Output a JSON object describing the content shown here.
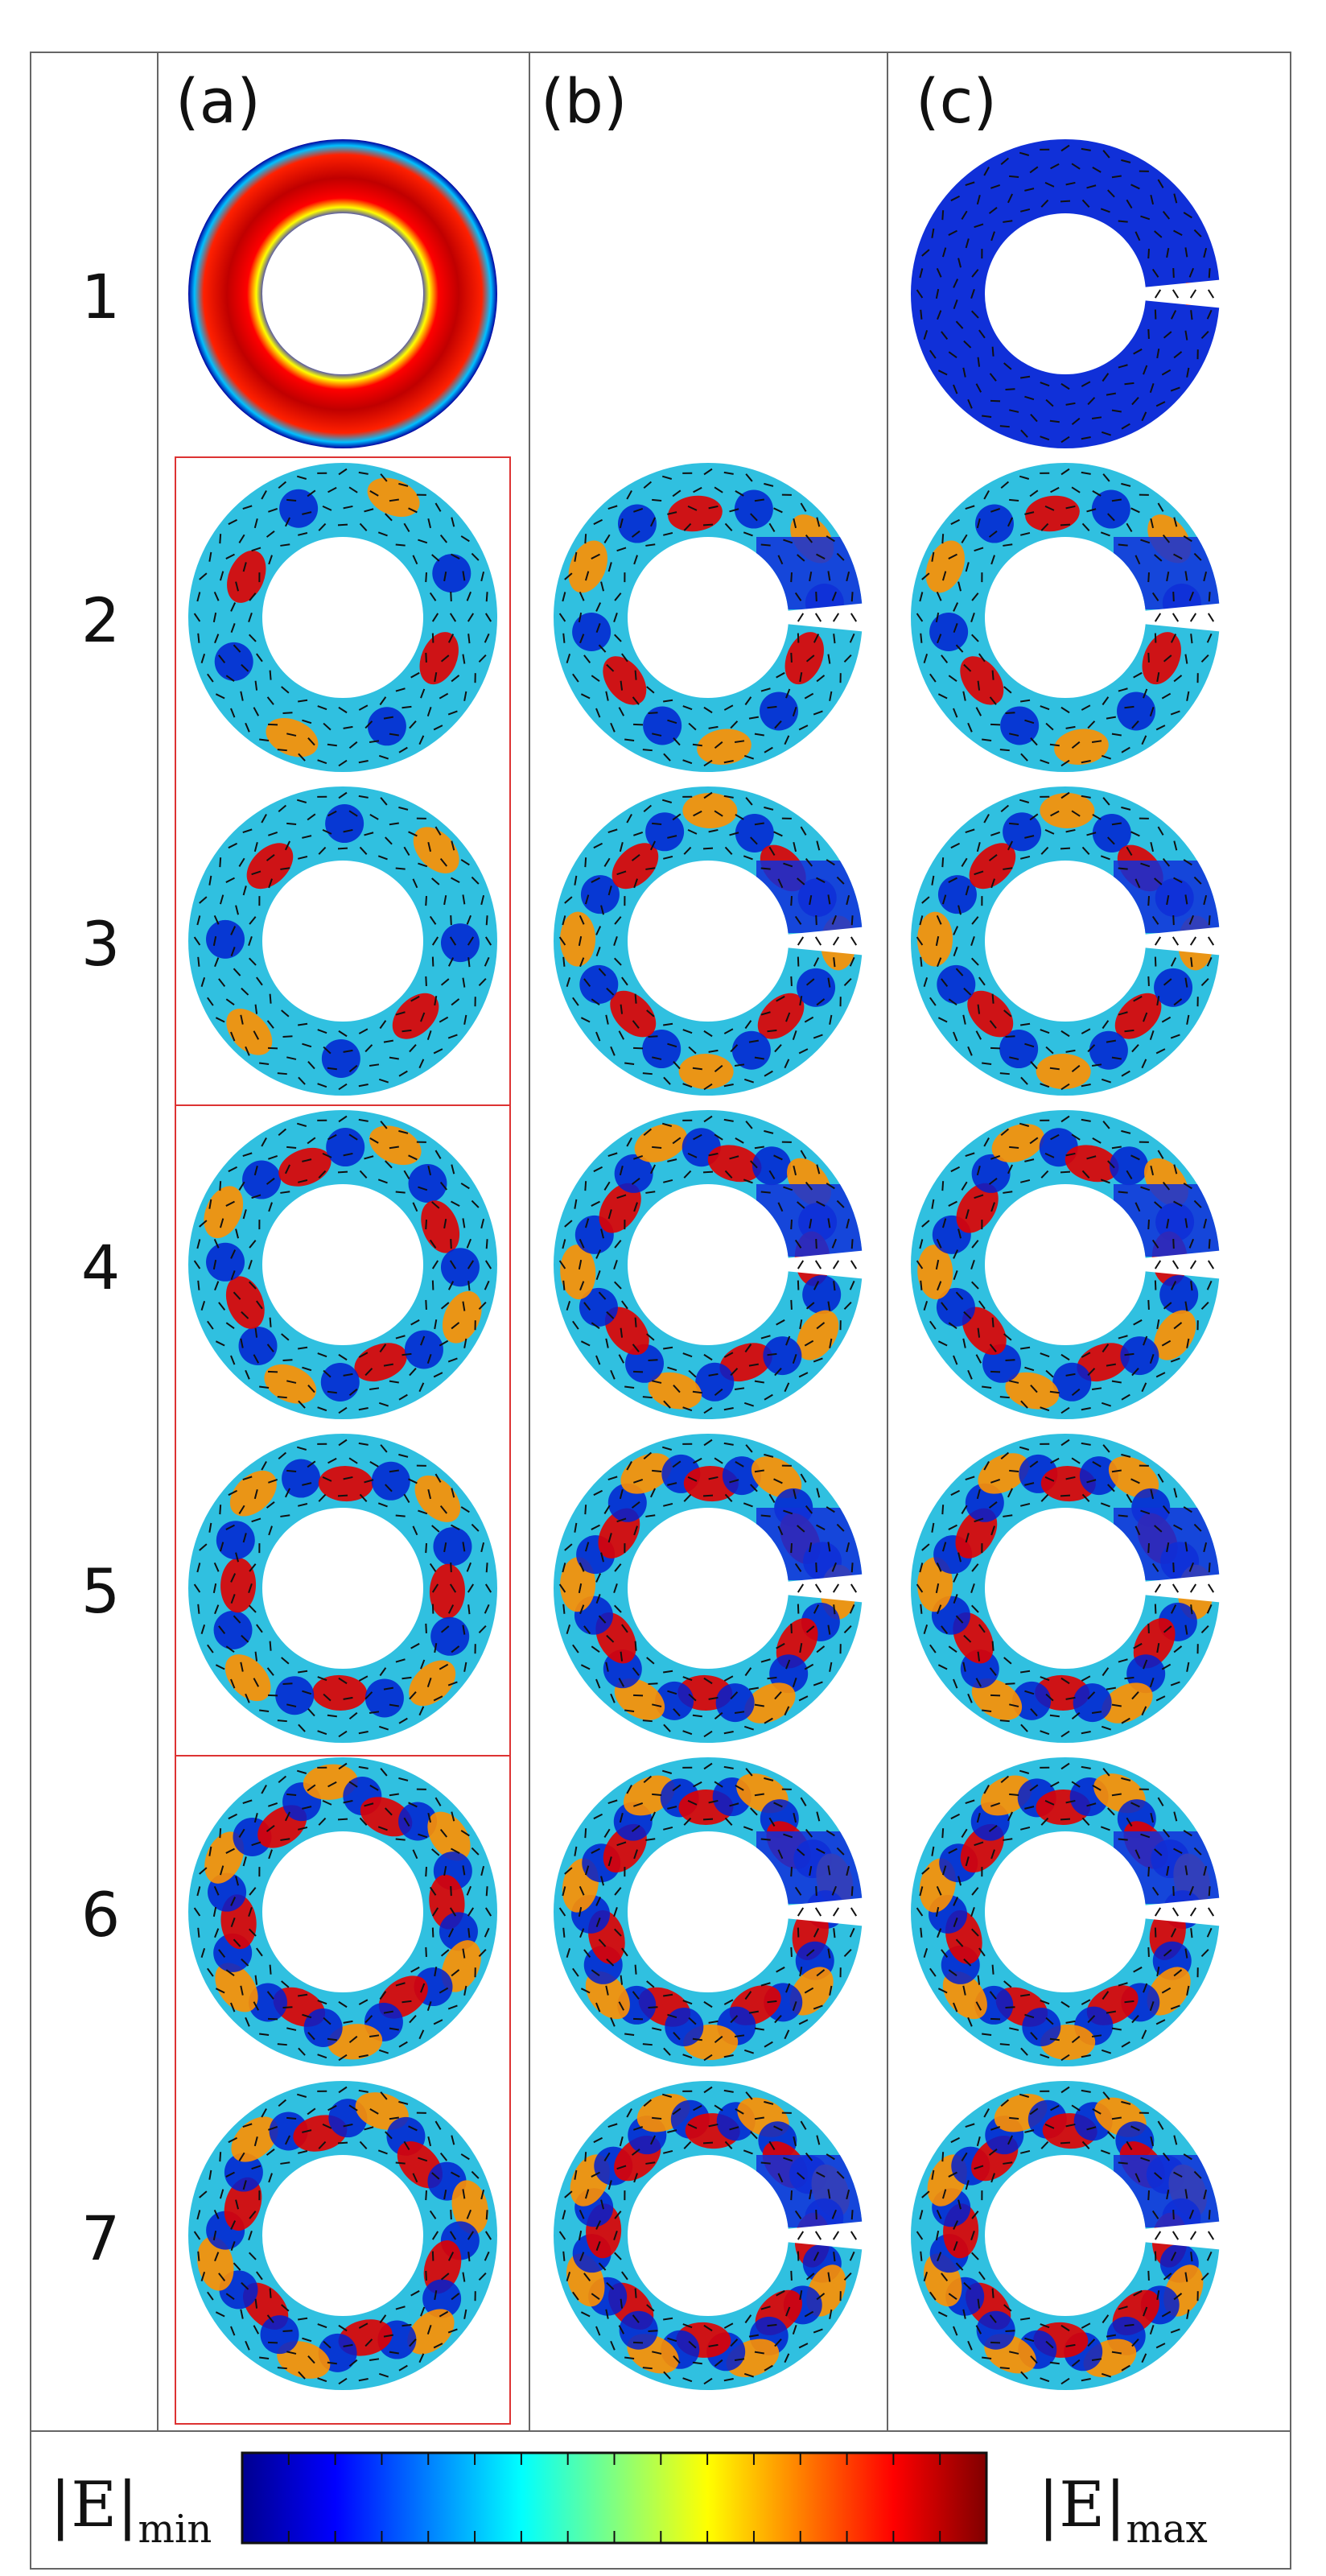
{
  "figure": {
    "columns": [
      {
        "id": "a",
        "label": "(a)"
      },
      {
        "id": "b",
        "label": "(b)"
      },
      {
        "id": "c",
        "label": "(c)"
      }
    ],
    "rows": [
      {
        "label": "1",
        "a": "ring-uniform",
        "b": "",
        "c": "slot-hotspot"
      },
      {
        "label": "2",
        "a": "ring-mode-2",
        "b": "slot-mode",
        "c": "slot-mode"
      },
      {
        "label": "3",
        "a": "ring-mode-2",
        "b": "slot-mode",
        "c": "slot-mode"
      },
      {
        "label": "4",
        "a": "ring-mode-4",
        "b": "slot-mode",
        "c": "slot-mode"
      },
      {
        "label": "5",
        "a": "ring-mode-4",
        "b": "slot-mode",
        "c": "slot-mode"
      },
      {
        "label": "6",
        "a": "ring-mode-6",
        "b": "slot-mode",
        "c": "slot-mode"
      },
      {
        "label": "7",
        "a": "ring-mode-6",
        "b": "slot-mode",
        "c": "slot-mode"
      }
    ],
    "highlighted_groups": [
      [
        2,
        3
      ],
      [
        4,
        5
      ],
      [
        6,
        7
      ]
    ]
  },
  "colorbar": {
    "min_label": {
      "symbol": "|E|",
      "subscript": "min"
    },
    "max_label": {
      "symbol": "|E|",
      "subscript": "max"
    },
    "colormap": "jet",
    "colors": [
      "#00008f",
      "#0000ff",
      "#0080ff",
      "#00ffff",
      "#80ff80",
      "#ffff00",
      "#ff8000",
      "#ff0000",
      "#800000"
    ],
    "tick_count": 16
  }
}
